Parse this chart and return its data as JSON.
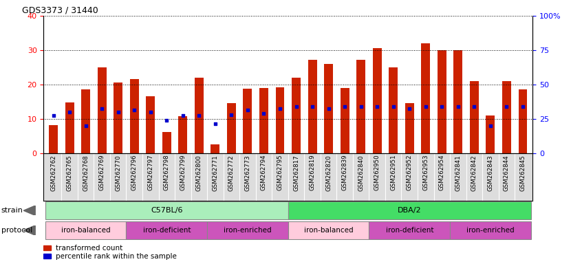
{
  "title": "GDS3373 / 31440",
  "samples": [
    "GSM262762",
    "GSM262765",
    "GSM262768",
    "GSM262769",
    "GSM262770",
    "GSM262796",
    "GSM262797",
    "GSM262798",
    "GSM262799",
    "GSM262800",
    "GSM262771",
    "GSM262772",
    "GSM262773",
    "GSM262794",
    "GSM262795",
    "GSM262817",
    "GSM262819",
    "GSM262820",
    "GSM262839",
    "GSM262840",
    "GSM262950",
    "GSM262951",
    "GSM262952",
    "GSM262953",
    "GSM262954",
    "GSM262841",
    "GSM262842",
    "GSM262843",
    "GSM262844",
    "GSM262845"
  ],
  "red_values": [
    8.2,
    14.8,
    18.5,
    25.0,
    20.5,
    21.5,
    16.5,
    6.2,
    10.8,
    22.0,
    2.5,
    14.5,
    18.8,
    19.0,
    19.2,
    22.0,
    27.2,
    26.0,
    19.0,
    27.2,
    30.5,
    25.0,
    14.5,
    32.0,
    30.0,
    30.0,
    21.0,
    11.0,
    21.0,
    18.5
  ],
  "blue_values": [
    11.0,
    12.0,
    8.0,
    13.0,
    12.0,
    12.5,
    12.0,
    9.5,
    11.0,
    11.0,
    8.5,
    11.2,
    12.5,
    11.5,
    13.0,
    13.5,
    13.5,
    13.0,
    13.5,
    13.5,
    13.5,
    13.5,
    13.0,
    13.5,
    13.5,
    13.5,
    13.5,
    8.0,
    13.5,
    13.5
  ],
  "strain_groups": [
    {
      "label": "C57BL/6",
      "start": 0,
      "end": 15,
      "color": "#AAEEBB"
    },
    {
      "label": "DBA/2",
      "start": 15,
      "end": 30,
      "color": "#44DD66"
    }
  ],
  "protocol_groups": [
    {
      "label": "iron-balanced",
      "start": 0,
      "end": 5,
      "color": "#FFCCDD"
    },
    {
      "label": "iron-deficient",
      "start": 5,
      "end": 10,
      "color": "#DD66CC"
    },
    {
      "label": "iron-enriched",
      "start": 10,
      "end": 15,
      "color": "#DD66CC"
    },
    {
      "label": "iron-balanced",
      "start": 15,
      "end": 20,
      "color": "#FFCCDD"
    },
    {
      "label": "iron-deficient",
      "start": 20,
      "end": 25,
      "color": "#DD66CC"
    },
    {
      "label": "iron-enriched",
      "start": 25,
      "end": 30,
      "color": "#DD66CC"
    }
  ],
  "red_color": "#CC2200",
  "blue_color": "#0000CC",
  "ylim_left": [
    0,
    40
  ],
  "ylim_right": [
    0,
    100
  ],
  "yticks_left": [
    0,
    10,
    20,
    30,
    40
  ],
  "yticks_right": [
    0,
    25,
    50,
    75,
    100
  ],
  "yticklabels_right": [
    "0",
    "25",
    "50",
    "75",
    "100%"
  ],
  "xtick_bg": "#DDDDDD",
  "bar_width": 0.55
}
